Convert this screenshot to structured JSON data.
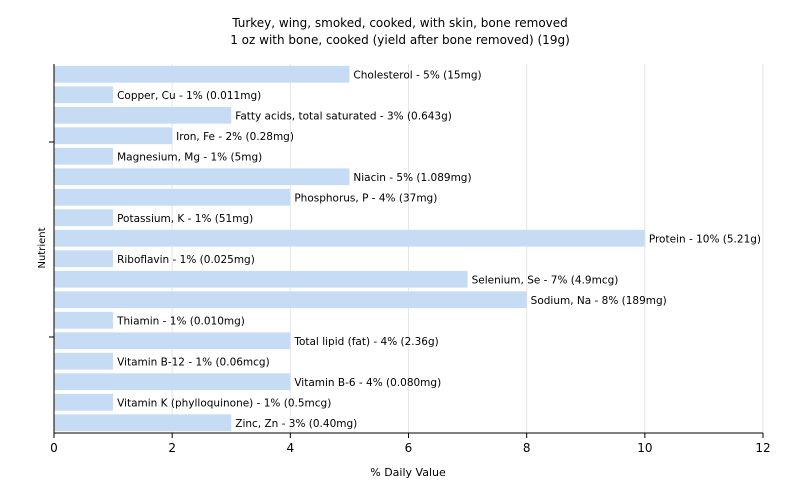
{
  "title_line1": "Turkey, wing, smoked, cooked, with skin, bone removed",
  "title_line2": "1 oz with bone, cooked (yield after bone removed) (19g)",
  "colors": {
    "bar": "#c6dcf5",
    "grid": "#e6e6e6",
    "axis": "#000000"
  },
  "chart_data": {
    "type": "bar",
    "orientation": "horizontal",
    "title": "Turkey, wing, smoked, cooked, with skin, bone removed",
    "subtitle": "1 oz with bone, cooked (yield after bone removed) (19g)",
    "xlabel": "% Daily Value",
    "ylabel": "Nutrient",
    "xlim": [
      0,
      12
    ],
    "xticks": [
      0,
      2,
      4,
      6,
      8,
      10,
      12
    ],
    "grid": true,
    "categories": [
      "Cholesterol",
      "Copper, Cu",
      "Fatty acids, total saturated",
      "Iron, Fe",
      "Magnesium, Mg",
      "Niacin",
      "Phosphorus, P",
      "Potassium, K",
      "Protein",
      "Riboflavin",
      "Selenium, Se",
      "Sodium, Na",
      "Thiamin",
      "Total lipid (fat)",
      "Vitamin B-12",
      "Vitamin B-6",
      "Vitamin K (phylloquinone)",
      "Zinc, Zn"
    ],
    "values": [
      5,
      1,
      3,
      2,
      1,
      5,
      4,
      1,
      10,
      1,
      7,
      8,
      1,
      4,
      1,
      4,
      1,
      3
    ],
    "labels": [
      "Cholesterol - 5% (15mg)",
      "Copper, Cu - 1% (0.011mg)",
      "Fatty acids, total saturated - 3% (0.643g)",
      "Iron, Fe - 2% (0.28mg)",
      "Magnesium, Mg - 1% (5mg)",
      "Niacin - 5% (1.089mg)",
      "Phosphorus, P - 4% (37mg)",
      "Potassium, K - 1% (51mg)",
      "Protein - 10% (5.21g)",
      "Riboflavin - 1% (0.025mg)",
      "Selenium, Se - 7% (4.9mcg)",
      "Sodium, Na - 8% (189mg)",
      "Thiamin - 1% (0.010mg)",
      "Total lipid (fat) - 4% (2.36g)",
      "Vitamin B-12 - 1% (0.06mcg)",
      "Vitamin B-6 - 4% (0.080mg)",
      "Vitamin K (phylloquinone) - 1% (0.5mcg)",
      "Zinc, Zn - 3% (0.40mg)"
    ]
  }
}
